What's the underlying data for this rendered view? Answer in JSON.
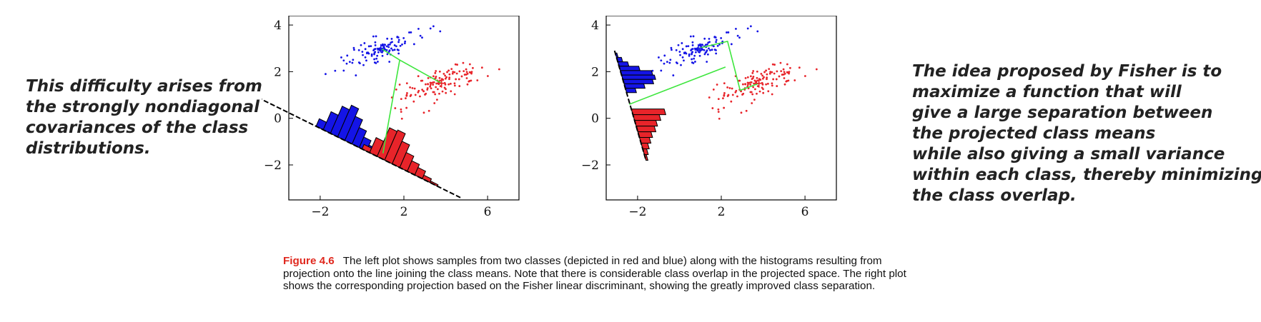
{
  "side_notes": {
    "left": "This difficulty arises from\nthe strongly nondiagonal\ncovariances of the class\ndistributions.",
    "right": "The idea proposed by Fisher is to\nmaximize a function that will\ngive a large separation between\nthe projected class means\nwhile also giving a small variance\nwithin each class, thereby minimizing\nthe class overlap."
  },
  "caption": {
    "label": "Figure 4.6",
    "text": "The left plot shows samples from two classes (depicted in red and blue) along with the histograms resulting from projection onto the line joining the class means. Note that there is considerable class overlap in the projected space. The right plot shows the corresponding projection based on the Fisher linear discriminant, showing the greatly improved class separation."
  },
  "colors": {
    "red_class": "#e8242a",
    "blue_class": "#1414e6",
    "projection_line": "#3ee63e",
    "caption_label": "#e0281e"
  },
  "chart_data": [
    {
      "type": "scatter",
      "title": "",
      "xlim": [
        -3.5,
        7.5
      ],
      "ylim": [
        -3.5,
        4.4
      ],
      "xticks": [
        -2,
        2,
        6
      ],
      "yticks": [
        -2,
        0,
        2,
        4
      ],
      "class_means": {
        "blue": [
          0.9,
          3.0
        ],
        "red": [
          3.8,
          1.5
        ]
      },
      "projection_line": [
        [
          -5.0,
          0.9
        ],
        [
          4.7,
          -3.4
        ]
      ],
      "mean_connector": [
        [
          0.9,
          3.0
        ],
        [
          1.8,
          2.5
        ],
        [
          3.8,
          1.5
        ]
      ],
      "mean_drop": [
        [
          1.8,
          2.5
        ],
        [
          1.0,
          -1.5
        ]
      ],
      "histogram_blue_heights": [
        0.25,
        0.6,
        0.9,
        1.05,
        0.8,
        0.55,
        0.35,
        0.2,
        0.1
      ],
      "histogram_red_heights": [
        0.15,
        0.5,
        0.95,
        1.0,
        0.75,
        0.5,
        0.35,
        0.25,
        0.12,
        0.05
      ],
      "histogram_blue_range": [
        -2.2,
        0.9
      ],
      "histogram_red_range": [
        0.0,
        3.6
      ]
    },
    {
      "type": "scatter",
      "title": "",
      "xlim": [
        -3.5,
        7.5
      ],
      "ylim": [
        -3.5,
        4.4
      ],
      "xticks": [
        -2,
        2,
        6
      ],
      "yticks": [
        -2,
        0,
        2,
        4
      ],
      "class_means": {
        "blue": [
          0.9,
          3.0
        ],
        "red": [
          3.8,
          1.5
        ]
      },
      "projection_line": [
        [
          -3.1,
          2.9
        ],
        [
          -1.6,
          -1.8
        ]
      ],
      "mean_connector": [
        [
          0.9,
          3.0
        ],
        [
          2.3,
          3.3
        ],
        [
          2.9,
          1.2
        ],
        [
          3.8,
          1.5
        ]
      ],
      "mean_drop": [
        [
          2.2,
          2.2
        ],
        [
          -2.4,
          0.6
        ]
      ],
      "histogram_blue_heights": [
        0.05,
        0.15,
        0.3,
        0.6,
        0.95,
        1.0,
        0.9,
        0.6,
        0.3
      ],
      "histogram_red_heights": [
        1.0,
        0.8,
        0.65,
        0.55,
        0.4,
        0.3,
        0.2,
        0.12,
        0.06
      ],
      "histogram_blue_range": [
        2.8,
        1.1
      ],
      "histogram_red_range": [
        0.4,
        -1.8
      ]
    }
  ]
}
